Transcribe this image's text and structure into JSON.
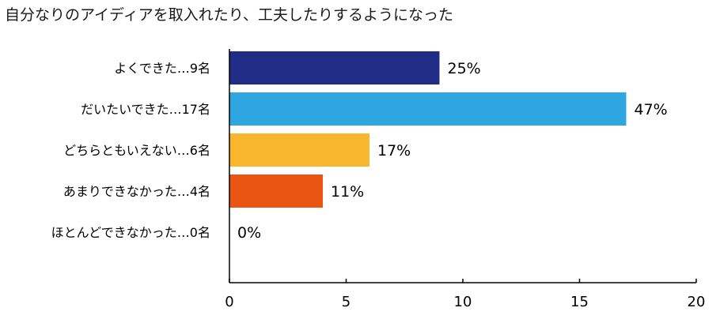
{
  "chart_data": {
    "type": "bar",
    "orientation": "horizontal",
    "title": "自分なりのアイディアを取入れたり、工夫したりするようになった",
    "xlabel": "",
    "ylabel": "",
    "categories": [
      "よくできた…9名",
      "だいたいできた…17名",
      "どちらともいえない…6名",
      "あまりできなかった…4名",
      "ほとんどできなかった…0名"
    ],
    "values": [
      9,
      17,
      6,
      4,
      0
    ],
    "percent_labels": [
      "25%",
      "47%",
      "17%",
      "11%",
      "0%"
    ],
    "colors": [
      "#1f2d86",
      "#2ea7e0",
      "#f8b62d",
      "#ea5514",
      "#999999"
    ],
    "xlim": [
      0,
      20
    ],
    "xticks": [
      "0",
      "5",
      "10",
      "15",
      "20"
    ],
    "grid": false,
    "legend": "none"
  }
}
